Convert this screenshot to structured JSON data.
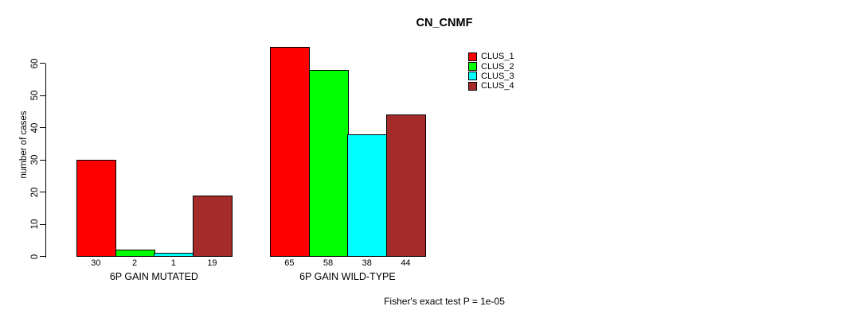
{
  "chart_data": {
    "type": "bar",
    "title": "CN_CNMF",
    "ylabel": "number of cases",
    "xlabel": "",
    "footnote": "Fisher's exact test P = 1e-05",
    "categories": [
      "6P GAIN MUTATED",
      "6P GAIN WILD-TYPE"
    ],
    "series": [
      {
        "name": "CLUS_1",
        "color": "#FF0000",
        "values": [
          30,
          65
        ]
      },
      {
        "name": "CLUS_2",
        "color": "#00FF00",
        "values": [
          2,
          58
        ]
      },
      {
        "name": "CLUS_3",
        "color": "#00FFFF",
        "values": [
          1,
          38
        ]
      },
      {
        "name": "CLUS_4",
        "color": "#A52A2A",
        "values": [
          19,
          44
        ]
      }
    ],
    "bar_value_labels": [
      [
        "30",
        "2",
        "1",
        "19"
      ],
      [
        "65",
        "58",
        "38",
        "44"
      ]
    ],
    "yticks": [
      0,
      10,
      20,
      30,
      40,
      50,
      60
    ],
    "ylim": [
      0,
      65
    ],
    "grid": false,
    "legend_position": "top-right",
    "bar_border_color": "#000000",
    "axis_color": "#000000",
    "text_color": "#000000",
    "background_color": "#FFFFFF"
  }
}
